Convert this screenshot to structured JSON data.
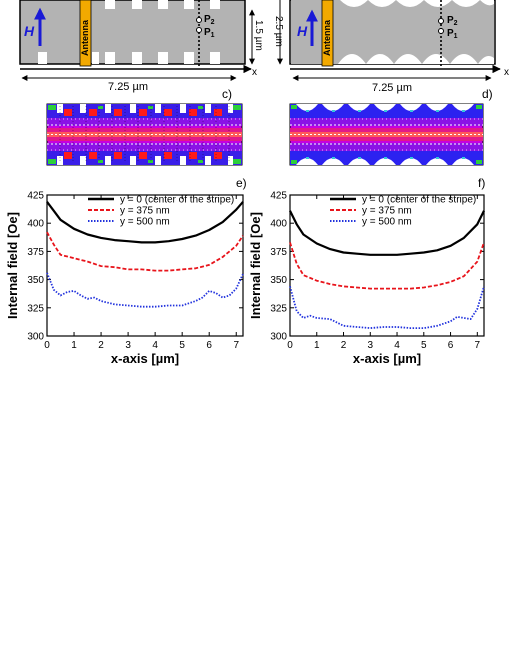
{
  "panel_a": {
    "field_label": "H",
    "antenna_label": "Antenna",
    "point_upper": "P",
    "point_upper_sub": "2",
    "point_lower": "P",
    "point_lower_sub": "1",
    "height_label": "1.5 µm",
    "width_label": "7.25 µm",
    "axis_x": "x"
  },
  "panel_b": {
    "field_label": "H",
    "antenna_label": "Antenna",
    "point_upper": "P",
    "point_upper_sub": "2",
    "point_lower": "P",
    "point_lower_sub": "1",
    "height_label": "2.5 µm",
    "width_label": "7.25 µm",
    "axis_x": "x"
  },
  "panel_c": {
    "label": "c)"
  },
  "panel_d": {
    "label": "d)"
  },
  "colors": {
    "stripe_gray": "#b3b3b3",
    "antenna": "#f2a900",
    "field_arrow": "#1a1ad6",
    "series_center": "#000000",
    "series_375": "#e8141b",
    "series_500": "#2233dd"
  },
  "chart_data": [
    {
      "panel": "e)",
      "type": "line",
      "xlabel": "x-axis [µm]",
      "ylabel": "Internal field [Oe]",
      "xlim": [
        0,
        7.25
      ],
      "ylim": [
        300,
        425
      ],
      "xticks": [
        0,
        1,
        2,
        3,
        4,
        5,
        6,
        7
      ],
      "yticks": [
        300,
        325,
        350,
        375,
        400,
        425
      ],
      "legend_position": "top",
      "series": [
        {
          "name": "y = 0 (center of the stripe)",
          "style": "solid",
          "x": [
            0,
            0.25,
            0.5,
            1,
            1.5,
            2,
            2.5,
            3,
            3.5,
            4,
            4.5,
            5,
            5.5,
            6,
            6.5,
            7,
            7.25
          ],
          "y": [
            419,
            411,
            403,
            395,
            390,
            387,
            385,
            384,
            383,
            383,
            384,
            386,
            389,
            394,
            401,
            412,
            419
          ]
        },
        {
          "name": "y = 375 nm",
          "style": "dashed",
          "x": [
            0,
            0.25,
            0.5,
            1,
            1.5,
            2,
            2.5,
            3,
            3.5,
            4,
            4.5,
            5,
            5.5,
            6,
            6.5,
            7,
            7.25
          ],
          "y": [
            392,
            381,
            372,
            369,
            366,
            362,
            361,
            359,
            359,
            358,
            358,
            359,
            360,
            363,
            370,
            380,
            389
          ]
        },
        {
          "name": "y = 500 nm",
          "style": "dotted",
          "x": [
            0,
            0.25,
            0.5,
            0.75,
            1,
            1.25,
            1.5,
            1.75,
            2,
            2.5,
            3,
            3.5,
            4,
            4.5,
            5,
            5.5,
            5.75,
            6,
            6.25,
            6.5,
            6.75,
            7,
            7.25
          ],
          "y": [
            356,
            341,
            336,
            339,
            340,
            336,
            333,
            334,
            331,
            328,
            327,
            326,
            326,
            327,
            327,
            331,
            334,
            340,
            338,
            334,
            336,
            342,
            355
          ]
        }
      ]
    },
    {
      "panel": "f)",
      "type": "line",
      "xlabel": "x-axis [µm]",
      "ylabel": "Internal field [Oe]",
      "xlim": [
        0,
        7.25
      ],
      "ylim": [
        300,
        425
      ],
      "xticks": [
        0,
        1,
        2,
        3,
        4,
        5,
        6,
        7
      ],
      "yticks": [
        300,
        325,
        350,
        375,
        400,
        425
      ],
      "legend_position": "top",
      "series": [
        {
          "name": "y = 0 (center of the stripe)",
          "style": "solid",
          "x": [
            0,
            0.25,
            0.5,
            1,
            1.5,
            2,
            2.5,
            3,
            3.5,
            4,
            4.5,
            5,
            5.5,
            6,
            6.5,
            7,
            7.25
          ],
          "y": [
            411,
            399,
            390,
            382,
            377,
            374,
            373,
            372,
            372,
            372,
            373,
            374,
            376,
            380,
            387,
            399,
            411
          ]
        },
        {
          "name": "y = 375 nm",
          "style": "dashed",
          "x": [
            0,
            0.25,
            0.5,
            1,
            1.5,
            2,
            2.5,
            3,
            3.5,
            4,
            4.5,
            5,
            5.5,
            6,
            6.5,
            7,
            7.25
          ],
          "y": [
            383,
            364,
            354,
            349,
            346,
            344,
            343,
            342,
            342,
            342,
            342,
            343,
            345,
            348,
            353,
            366,
            383
          ]
        },
        {
          "name": "y = 500 nm",
          "style": "dotted",
          "x": [
            0,
            0.25,
            0.5,
            0.75,
            1,
            1.5,
            2,
            2.5,
            3,
            3.5,
            4,
            4.5,
            5,
            5.5,
            6,
            6.25,
            6.5,
            6.75,
            7,
            7.25
          ],
          "y": [
            344,
            322,
            316,
            318,
            316,
            315,
            309,
            308,
            307,
            308,
            308,
            307,
            307,
            309,
            313,
            317,
            316,
            315,
            324,
            344
          ]
        }
      ]
    }
  ]
}
